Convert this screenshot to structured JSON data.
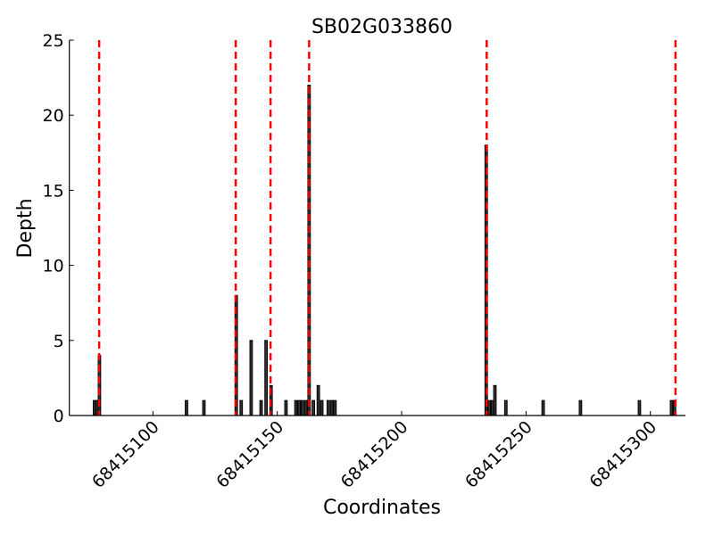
{
  "chart_data": {
    "type": "bar",
    "title": "SB02G033860",
    "xlabel": "Coordinates",
    "ylabel": "Depth",
    "xlim": [
      68415066.4,
      68415314.1
    ],
    "ylim": [
      0,
      25
    ],
    "xticks": [
      68415100,
      68415150,
      68415200,
      68415250,
      68415300
    ],
    "xtick_labels": [
      "68415100",
      "68415150",
      "68415200",
      "68415250",
      "68415300"
    ],
    "yticks": [
      0,
      5,
      10,
      15,
      20,
      25
    ],
    "ytick_labels": [
      "0",
      "5",
      "10",
      "15",
      "20",
      "25"
    ],
    "grid": false,
    "bar_color": "#333333",
    "line_color": "#ff0000",
    "bars": [
      {
        "x": 68415076,
        "depth": 1
      },
      {
        "x": 68415077,
        "depth": 1
      },
      {
        "x": 68415078,
        "depth": 4
      },
      {
        "x": 68415113,
        "depth": 1
      },
      {
        "x": 68415120,
        "depth": 1
      },
      {
        "x": 68415133,
        "depth": 8
      },
      {
        "x": 68415135,
        "depth": 1
      },
      {
        "x": 68415139,
        "depth": 5
      },
      {
        "x": 68415143,
        "depth": 1
      },
      {
        "x": 68415145,
        "depth": 5
      },
      {
        "x": 68415147,
        "depth": 2
      },
      {
        "x": 68415153,
        "depth": 1
      },
      {
        "x": 68415157,
        "depth": 1
      },
      {
        "x": 68415158.3,
        "depth": 1
      },
      {
        "x": 68415159.6,
        "depth": 1
      },
      {
        "x": 68415161,
        "depth": 1
      },
      {
        "x": 68415162.3,
        "depth": 22
      },
      {
        "x": 68415164,
        "depth": 1
      },
      {
        "x": 68415166,
        "depth": 2
      },
      {
        "x": 68415167.4,
        "depth": 1
      },
      {
        "x": 68415170,
        "depth": 1
      },
      {
        "x": 68415171.4,
        "depth": 1
      },
      {
        "x": 68415172.7,
        "depth": 1
      },
      {
        "x": 68415233.5,
        "depth": 18
      },
      {
        "x": 68415234.7,
        "depth": 1
      },
      {
        "x": 68415236,
        "depth": 1
      },
      {
        "x": 68415237,
        "depth": 2
      },
      {
        "x": 68415241.4,
        "depth": 1
      },
      {
        "x": 68415256.4,
        "depth": 1
      },
      {
        "x": 68415271.4,
        "depth": 1
      },
      {
        "x": 68415295.1,
        "depth": 1
      },
      {
        "x": 68415308,
        "depth": 1
      },
      {
        "x": 68415309.2,
        "depth": 1
      }
    ],
    "vlines": [
      68415078.4,
      68415133.3,
      68415147.3,
      68415162.8,
      68415234.2,
      68415310.1
    ]
  }
}
